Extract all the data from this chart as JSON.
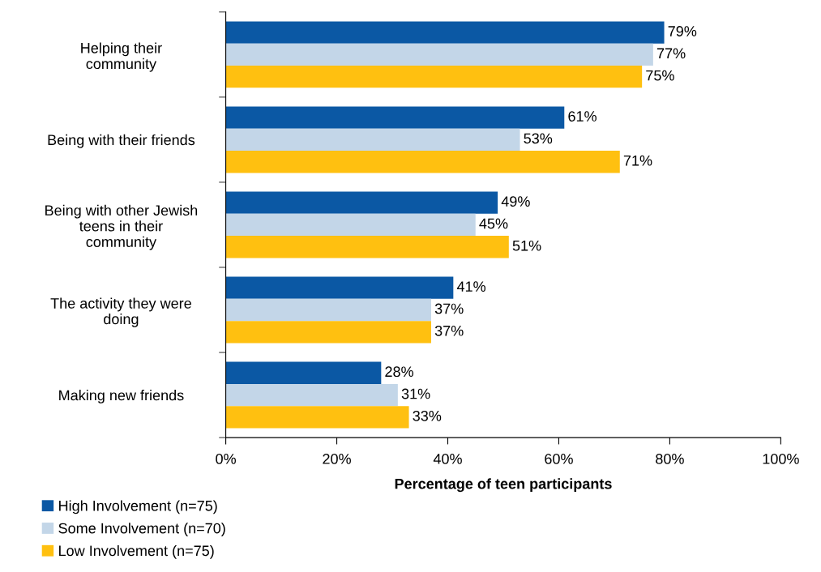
{
  "chart_data": {
    "type": "bar",
    "orientation": "horizontal",
    "xlabel": "Percentage of teen participants",
    "categories": [
      "Helping their\ncommunity",
      "Being with their friends",
      "Being with other Jewish\nteens in their\ncommunity",
      "The activity they were\ndoing",
      "Making new friends"
    ],
    "series": [
      {
        "name": "High Involvement (n=75)",
        "color": "#0b58a4",
        "values": [
          79,
          61,
          49,
          41,
          28
        ],
        "value_labels": [
          "79%",
          "61%",
          "49%",
          "41%",
          "28%"
        ]
      },
      {
        "name": "Some Involvement (n=70)",
        "color": "#c3d6e8",
        "values": [
          77,
          53,
          45,
          37,
          31
        ],
        "value_labels": [
          "77%",
          "53%",
          "45%",
          "37%",
          "31%"
        ]
      },
      {
        "name": "Low Involvement (n=75)",
        "color": "#ffc010",
        "values": [
          75,
          71,
          51,
          37,
          33
        ],
        "value_labels": [
          "75%",
          "71%",
          "51%",
          "37%",
          "33%"
        ]
      }
    ],
    "xlim": [
      0,
      100
    ],
    "xticks": [
      {
        "value": 0,
        "label": "0%"
      },
      {
        "value": 20,
        "label": "20%"
      },
      {
        "value": 40,
        "label": "40%"
      },
      {
        "value": 60,
        "label": "60%"
      },
      {
        "value": 80,
        "label": "80%"
      },
      {
        "value": 100,
        "label": "100%"
      }
    ],
    "legend": "bottom left",
    "grid": false
  }
}
